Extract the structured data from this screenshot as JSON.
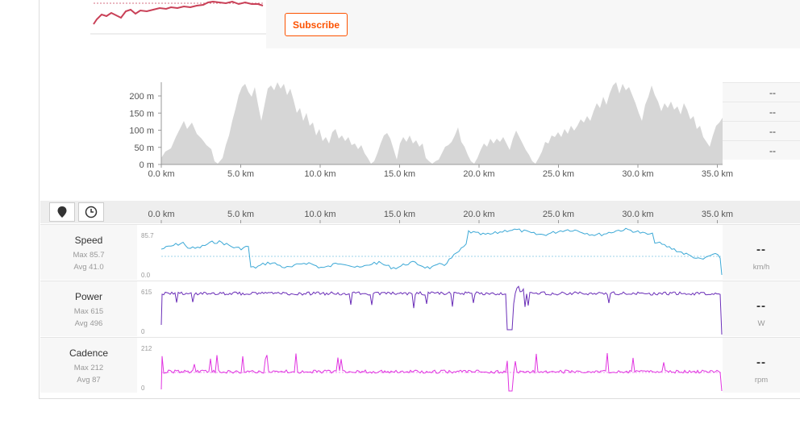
{
  "subscribe": {
    "label": "Subscribe"
  },
  "elevation": {
    "y_ticks": [
      {
        "v": 200,
        "label": "200 m"
      },
      {
        "v": 150,
        "label": "150 m"
      },
      {
        "v": 100,
        "label": "100 m"
      },
      {
        "v": 50,
        "label": "50 m"
      },
      {
        "v": 0,
        "label": "0 m"
      }
    ],
    "side_values": [
      "--",
      "--",
      "--",
      "--"
    ]
  },
  "x_ticks": [
    "0.0 km",
    "5.0 km",
    "10.0 km",
    "15.0 km",
    "20.0 km",
    "25.0 km",
    "30.0 km",
    "35.0 km"
  ],
  "toolbar": {
    "map_icon": "map-pin-icon",
    "time_icon": "clock-icon"
  },
  "streams": [
    {
      "key": "speed",
      "name": "Speed",
      "max": "Max 85.7",
      "avg": "Avg 41.0",
      "top_label": "85.7",
      "bottom_label": "0.0",
      "value": "--",
      "unit": "km/h",
      "color": "#3ba8d6"
    },
    {
      "key": "power",
      "name": "Power",
      "max": "Max 615",
      "avg": "Avg 496",
      "top_label": "615",
      "bottom_label": "0",
      "value": "--",
      "unit": "W",
      "color": "#6b2fb8"
    },
    {
      "key": "cadence",
      "name": "Cadence",
      "max": "Max 212",
      "avg": "Avg 87",
      "top_label": "212",
      "bottom_label": "0",
      "value": "--",
      "unit": "rpm",
      "color": "#e033e0"
    }
  ],
  "colors": {
    "accent": "#fc5200",
    "elevation_fill": "#d6d6d6",
    "mini_line": "#c94057"
  }
}
